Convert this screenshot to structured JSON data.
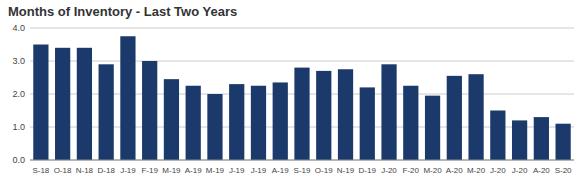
{
  "chart_data": {
    "type": "bar",
    "title": "Months of Inventory - Last Two Years",
    "categories": [
      "S-18",
      "O-18",
      "N-18",
      "D-18",
      "J-19",
      "F-19",
      "M-19",
      "A-19",
      "M-19",
      "J-19",
      "J-19",
      "A-19",
      "S-19",
      "O-19",
      "N-19",
      "D-19",
      "J-20",
      "F-20",
      "M-20",
      "A-20",
      "M-20",
      "J-20",
      "J-20",
      "A-20",
      "S-20"
    ],
    "values": [
      3.5,
      3.4,
      3.4,
      2.9,
      3.75,
      3.0,
      2.45,
      2.25,
      2.0,
      2.3,
      2.25,
      2.35,
      2.8,
      2.7,
      2.75,
      2.2,
      2.9,
      2.25,
      1.95,
      2.55,
      2.6,
      1.5,
      1.2,
      1.3,
      1.1
    ],
    "color": "#1b3a6b",
    "ylim": [
      0,
      4.0
    ],
    "yticks": [
      {
        "value": 0.0,
        "label": "0.0"
      },
      {
        "value": 1.0,
        "label": "1.0"
      },
      {
        "value": 2.0,
        "label": "2.0"
      },
      {
        "value": 3.0,
        "label": "3.0"
      },
      {
        "value": 4.0,
        "label": "4.0"
      }
    ],
    "grid": true
  }
}
